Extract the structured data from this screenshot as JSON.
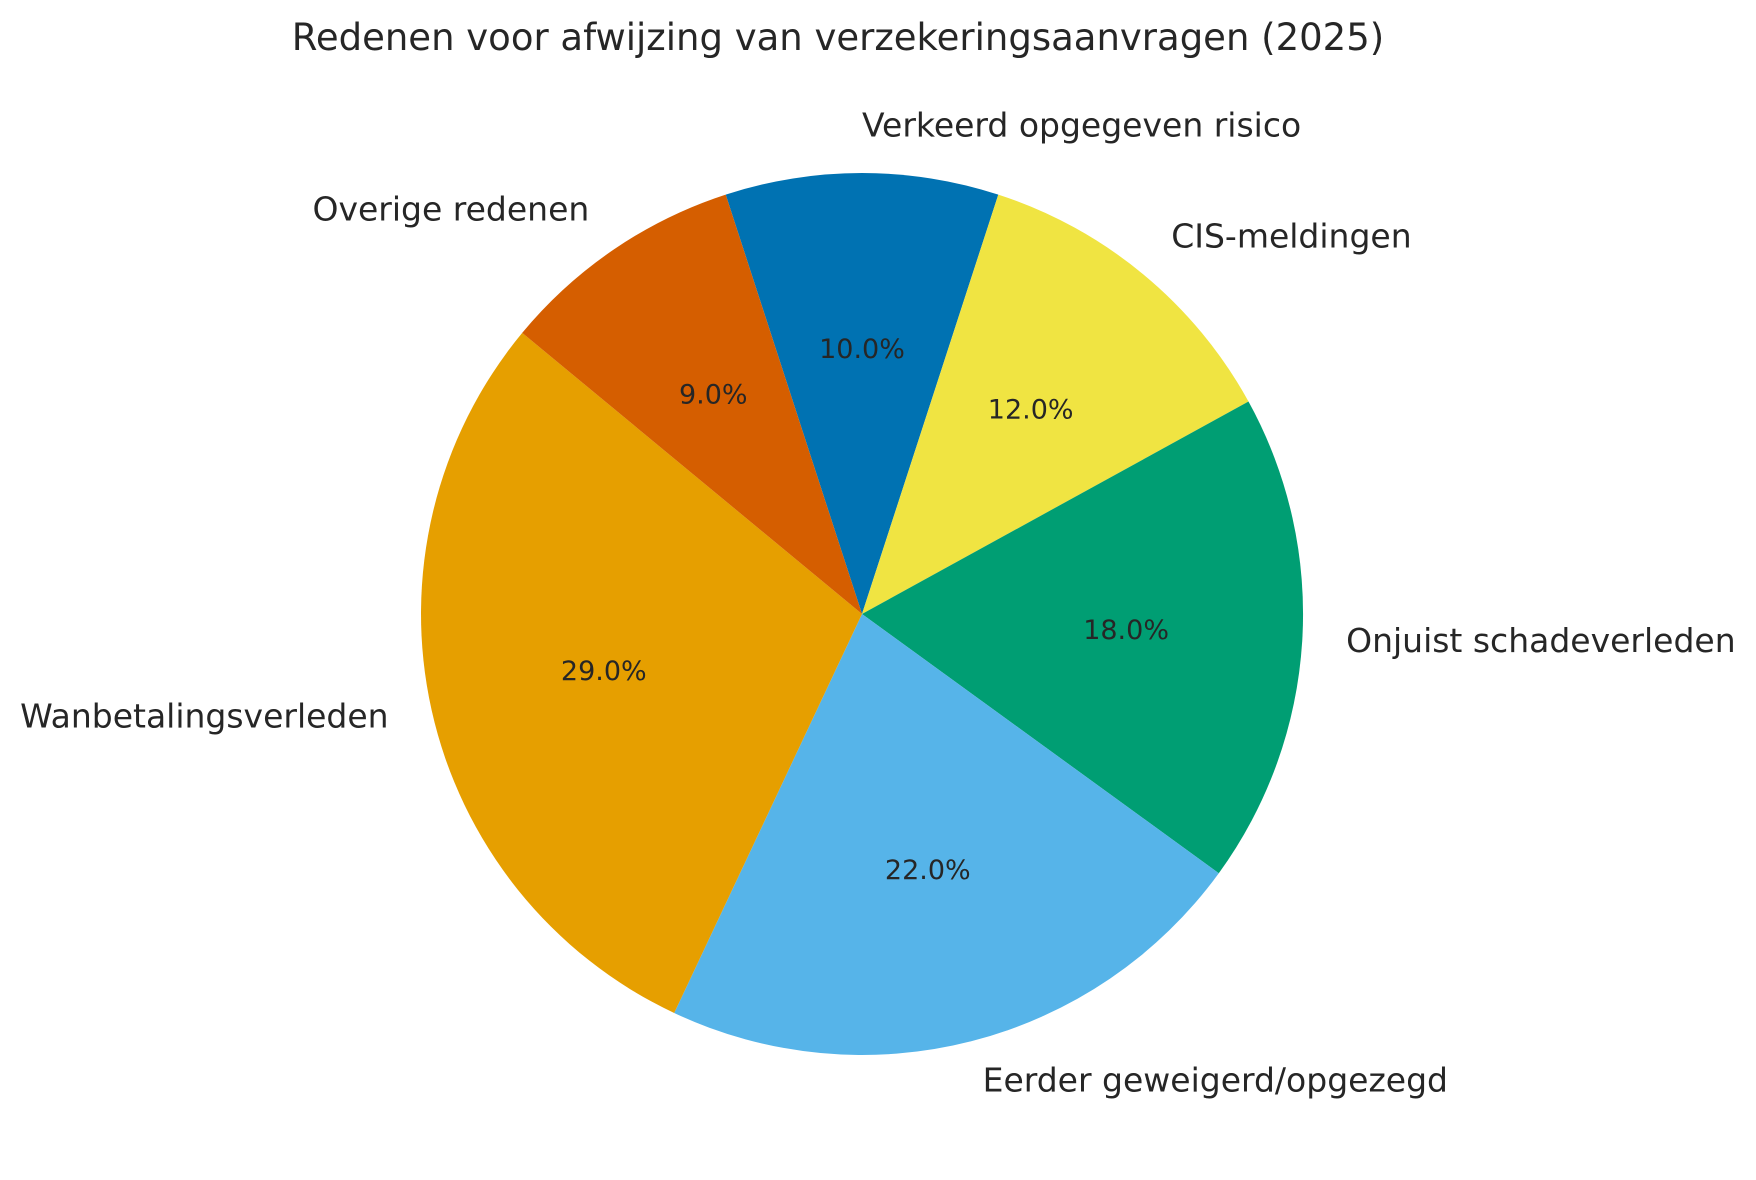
{
  "chart_data": {
    "type": "pie",
    "title": "Redenen voor afwijzing van verzekeringsaanvragen (2025)",
    "slices": [
      {
        "label": "Verkeerd opgegeven risico",
        "value": 10.0,
        "pct_label": "10.0%",
        "color": "#0072b2"
      },
      {
        "label": "CIS-meldingen",
        "value": 12.0,
        "pct_label": "12.0%",
        "color": "#f0e442"
      },
      {
        "label": "Onjuist schadeverleden",
        "value": 18.0,
        "pct_label": "18.0%",
        "color": "#009e73"
      },
      {
        "label": "Eerder geweigerd/opgezegd",
        "value": 22.0,
        "pct_label": "22.0%",
        "color": "#56b4e9"
      },
      {
        "label": "Wanbetalingsverleden",
        "value": 29.0,
        "pct_label": "29.0%",
        "color": "#e69f00"
      },
      {
        "label": "Overige redenen",
        "value": 9.0,
        "pct_label": "9.0%",
        "color": "#d55e00"
      }
    ],
    "start_angle_deg": 108,
    "direction": "clockwise",
    "pct_distance": 0.6,
    "label_distance": 1.1,
    "text_color": "#262626",
    "background": "#ffffff",
    "legend": "none"
  }
}
